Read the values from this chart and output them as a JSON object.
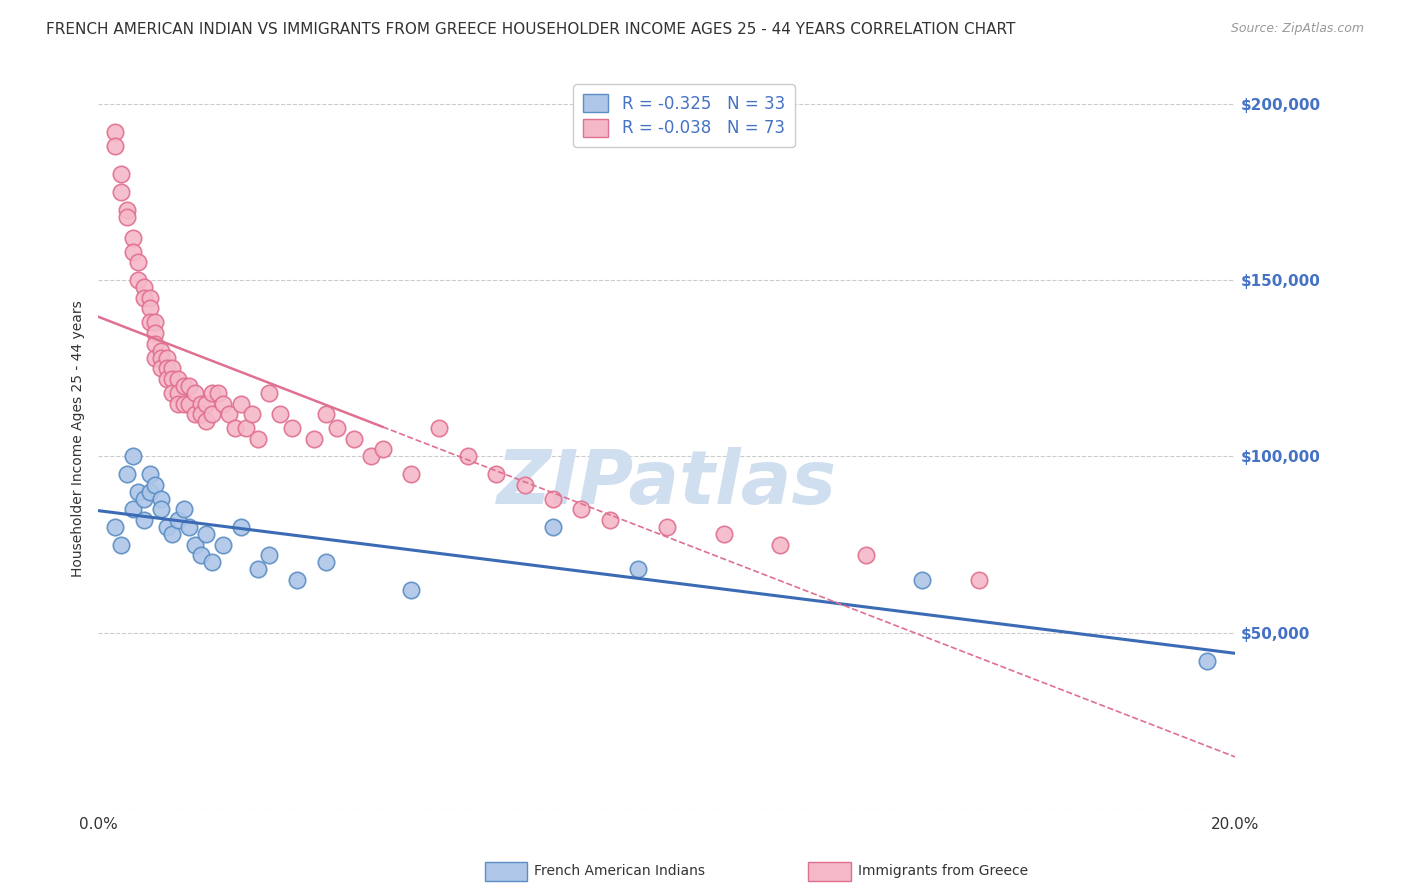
{
  "title": "FRENCH AMERICAN INDIAN VS IMMIGRANTS FROM GREECE HOUSEHOLDER INCOME AGES 25 - 44 YEARS CORRELATION CHART",
  "source": "Source: ZipAtlas.com",
  "ylabel": "Householder Income Ages 25 - 44 years",
  "xlim": [
    0.0,
    0.2
  ],
  "ylim": [
    0,
    210000
  ],
  "xticks": [
    0.0,
    0.04,
    0.08,
    0.12,
    0.16,
    0.2
  ],
  "xticklabels": [
    "0.0%",
    "",
    "",
    "",
    "",
    "20.0%"
  ],
  "ytick_positions": [
    0,
    50000,
    100000,
    150000,
    200000
  ],
  "ytick_labels": [
    "",
    "$50,000",
    "$100,000",
    "$150,000",
    "$200,000"
  ],
  "blue_R": "-0.325",
  "blue_N": "33",
  "pink_R": "-0.038",
  "pink_N": "73",
  "blue_color": "#aec6e8",
  "pink_color": "#f5b8c8",
  "blue_edge_color": "#5b8ec4",
  "pink_edge_color": "#e07090",
  "blue_line_color": "#3c6bb5",
  "pink_line_color": "#e07090",
  "legend_label_blue": "French American Indians",
  "legend_label_pink": "Immigrants from Greece",
  "watermark": "ZIPatlas",
  "blue_scatter_x": [
    0.003,
    0.004,
    0.005,
    0.006,
    0.006,
    0.007,
    0.008,
    0.008,
    0.009,
    0.009,
    0.01,
    0.011,
    0.011,
    0.012,
    0.013,
    0.014,
    0.015,
    0.016,
    0.017,
    0.018,
    0.019,
    0.02,
    0.022,
    0.025,
    0.028,
    0.03,
    0.035,
    0.04,
    0.055,
    0.08,
    0.095,
    0.145,
    0.195
  ],
  "blue_scatter_y": [
    80000,
    75000,
    95000,
    100000,
    85000,
    90000,
    88000,
    82000,
    95000,
    90000,
    92000,
    88000,
    85000,
    80000,
    78000,
    82000,
    85000,
    80000,
    75000,
    72000,
    78000,
    70000,
    75000,
    80000,
    68000,
    72000,
    65000,
    70000,
    62000,
    80000,
    68000,
    65000,
    42000
  ],
  "pink_scatter_x": [
    0.003,
    0.003,
    0.004,
    0.004,
    0.005,
    0.005,
    0.006,
    0.006,
    0.007,
    0.007,
    0.008,
    0.008,
    0.009,
    0.009,
    0.009,
    0.01,
    0.01,
    0.01,
    0.01,
    0.011,
    0.011,
    0.011,
    0.012,
    0.012,
    0.012,
    0.013,
    0.013,
    0.013,
    0.014,
    0.014,
    0.014,
    0.015,
    0.015,
    0.016,
    0.016,
    0.017,
    0.017,
    0.018,
    0.018,
    0.019,
    0.019,
    0.02,
    0.02,
    0.021,
    0.022,
    0.023,
    0.024,
    0.025,
    0.026,
    0.027,
    0.028,
    0.03,
    0.032,
    0.034,
    0.038,
    0.04,
    0.042,
    0.045,
    0.048,
    0.05,
    0.055,
    0.06,
    0.065,
    0.07,
    0.075,
    0.08,
    0.085,
    0.09,
    0.1,
    0.11,
    0.12,
    0.135,
    0.155
  ],
  "pink_scatter_y": [
    192000,
    188000,
    180000,
    175000,
    170000,
    168000,
    162000,
    158000,
    155000,
    150000,
    148000,
    145000,
    145000,
    142000,
    138000,
    138000,
    135000,
    132000,
    128000,
    130000,
    128000,
    125000,
    128000,
    125000,
    122000,
    125000,
    122000,
    118000,
    122000,
    118000,
    115000,
    120000,
    115000,
    120000,
    115000,
    118000,
    112000,
    115000,
    112000,
    115000,
    110000,
    118000,
    112000,
    118000,
    115000,
    112000,
    108000,
    115000,
    108000,
    112000,
    105000,
    118000,
    112000,
    108000,
    105000,
    112000,
    108000,
    105000,
    100000,
    102000,
    95000,
    108000,
    100000,
    95000,
    92000,
    88000,
    85000,
    82000,
    80000,
    78000,
    75000,
    72000,
    65000
  ],
  "background_color": "#ffffff",
  "grid_color": "#cccccc",
  "title_color": "#333333",
  "axis_label_color": "#4472c4",
  "watermark_color": "#d0dff0",
  "watermark_fontsize": 54,
  "title_fontsize": 11,
  "source_fontsize": 9,
  "marker_size": 140,
  "marker_linewidth": 1.2
}
